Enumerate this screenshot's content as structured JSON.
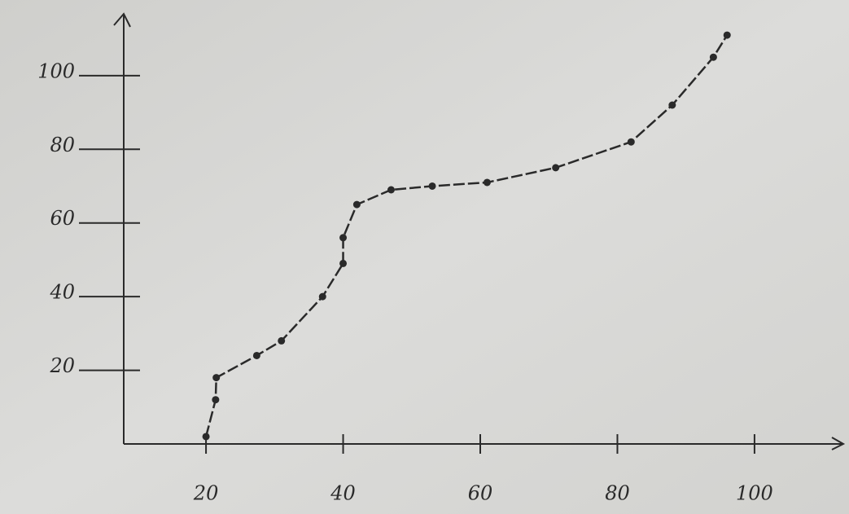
{
  "chart_data": {
    "type": "line",
    "x": [
      20,
      21.4,
      21.5,
      27.4,
      31,
      37,
      40,
      40,
      42,
      47,
      53,
      61,
      71,
      82,
      88,
      94,
      96
    ],
    "series": [
      {
        "color": "#2a2a2a",
        "values": [
          2,
          12,
          18,
          24,
          28,
          40,
          49,
          56,
          65,
          69,
          70,
          71,
          75,
          82,
          92,
          105,
          111
        ]
      }
    ],
    "xlim": [
      8,
      112
    ],
    "xticks": [
      20,
      40,
      60,
      80,
      100
    ],
    "ylim": [
      0,
      115
    ],
    "yticks": [
      20,
      40,
      60,
      80,
      100
    ],
    "markers": true
  }
}
